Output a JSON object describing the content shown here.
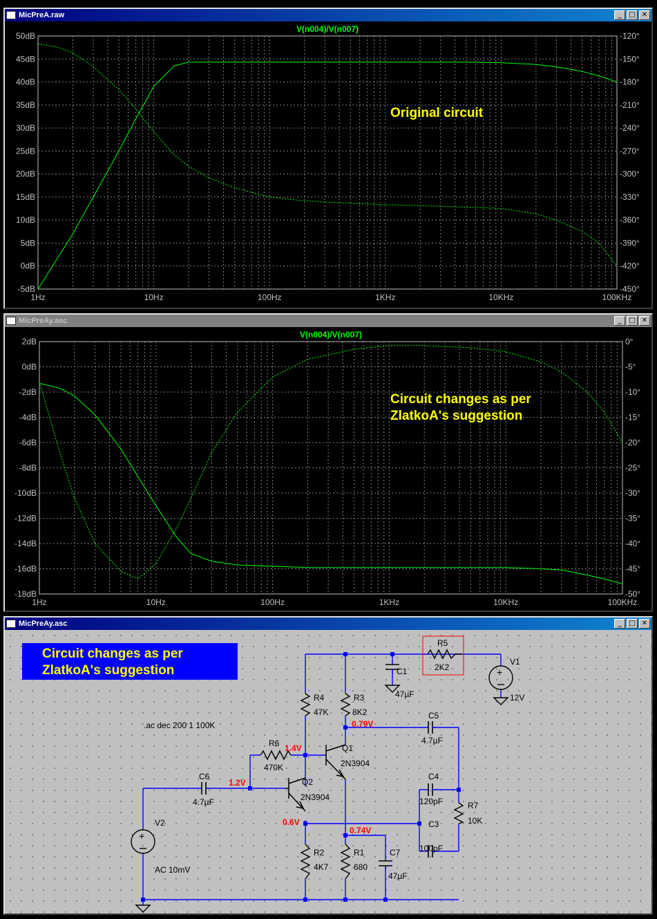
{
  "windows": {
    "top": {
      "title": "MicPreA.raw",
      "trace_label": "V(n004)/V(n007)",
      "annotation": "Original circuit",
      "left_ticks": [
        "50dB",
        "45dB",
        "40dB",
        "35dB",
        "30dB",
        "25dB",
        "20dB",
        "15dB",
        "10dB",
        "5dB",
        "0dB",
        "-5dB"
      ],
      "right_ticks": [
        "-120°",
        "-150°",
        "-180°",
        "-210°",
        "-240°",
        "-270°",
        "-300°",
        "-330°",
        "-360°",
        "-390°",
        "-420°",
        "-450°"
      ],
      "x_ticks": [
        "1Hz",
        "10Hz",
        "100Hz",
        "1KHz",
        "10KHz",
        "100KHz"
      ]
    },
    "middle": {
      "title": "MicPreAy.asc",
      "trace_label": "V(n004)/V(n007)",
      "annotation_line1": "Circuit changes as per",
      "annotation_line2": "ZlatkoA's suggestion",
      "left_ticks": [
        "2dB",
        "0dB",
        "-2dB",
        "-4dB",
        "-6dB",
        "-8dB",
        "-10dB",
        "-12dB",
        "-14dB",
        "-16dB",
        "-18dB"
      ],
      "right_ticks": [
        "0°",
        "-5°",
        "-10°",
        "-15°",
        "-20°",
        "-25°",
        "-30°",
        "-35°",
        "-40°",
        "-45°",
        "-50°"
      ],
      "x_ticks": [
        "1Hz",
        "10Hz",
        "100Hz",
        "1KHz",
        "10KHz",
        "100KHz"
      ]
    },
    "bottom": {
      "title": "MicPreAy.asc",
      "banner_line1": "Circuit changes as per",
      "banner_line2": "ZlatkoA's suggestion",
      "directive": ".ac dec 200 1 100K",
      "components": {
        "R5": {
          "name": "R5",
          "value": "2K2"
        },
        "V1": {
          "name": "V1",
          "value": "12V"
        },
        "C1": {
          "name": "C1",
          "value": "47µF"
        },
        "R4": {
          "name": "R4",
          "value": "47K"
        },
        "R3": {
          "name": "R3",
          "value": "8K2"
        },
        "C5": {
          "name": "C5",
          "value": "4.7µF"
        },
        "R6": {
          "name": "R6",
          "value": "470K"
        },
        "Q1": {
          "name": "Q1",
          "value": "2N3904"
        },
        "Q2": {
          "name": "Q2",
          "value": "2N3904"
        },
        "C6": {
          "name": "C6",
          "value": "4.7µF"
        },
        "C4": {
          "name": "C4",
          "value": "120pF"
        },
        "R7": {
          "name": "R7",
          "value": "10K"
        },
        "C3": {
          "name": "C3",
          "value": "100pF"
        },
        "V2": {
          "name": "V2",
          "value": "AC 10mV"
        },
        "R2": {
          "name": "R2",
          "value": "4K7"
        },
        "R1": {
          "name": "R1",
          "value": "680"
        },
        "C7": {
          "name": "C7",
          "value": "47µF"
        }
      },
      "voltages": {
        "n1": "0.79V",
        "n2": "1.4V",
        "n3": "1.2V",
        "n4": "0.6V",
        "n5": "0.74V"
      }
    }
  },
  "colors": {
    "trace": "#00ff00",
    "grid": "#808080",
    "annot": "#ffff00",
    "wire": "#0000ff",
    "volt": "#ff0000",
    "banner": "#0000ff"
  },
  "chart_data": [
    {
      "type": "line",
      "title": "V(n004)/V(n007)",
      "x_scale": "log",
      "xlim": [
        1,
        100000
      ],
      "ylim": [
        -5,
        50
      ],
      "y2lim": [
        -450,
        -120
      ],
      "series": [
        {
          "axis": "left",
          "style": "solid",
          "unit": "dB",
          "x": [
            1,
            1.5,
            2,
            3,
            5,
            7,
            10,
            15,
            20,
            50,
            100,
            1000,
            5000,
            10000,
            20000,
            30000,
            50000,
            70000,
            100000
          ],
          "values": [
            -5,
            2,
            7,
            15,
            25,
            32,
            39,
            43.5,
            44.3,
            44.3,
            44.3,
            44.3,
            44.3,
            44.2,
            43.8,
            43.3,
            42.3,
            41.3,
            40
          ]
        },
        {
          "axis": "right",
          "style": "dashed",
          "unit": "°",
          "x": [
            1,
            1.5,
            2,
            3,
            5,
            7,
            10,
            15,
            20,
            30,
            50,
            100,
            200,
            500,
            1000,
            3000,
            10000,
            20000,
            30000,
            50000,
            70000,
            100000
          ],
          "values": [
            -130,
            -135,
            -142,
            -160,
            -190,
            -215,
            -245,
            -275,
            -290,
            -305,
            -318,
            -330,
            -335,
            -338,
            -340,
            -342,
            -345,
            -352,
            -360,
            -375,
            -390,
            -420
          ]
        }
      ]
    },
    {
      "type": "line",
      "title": "V(n004)/V(n007)",
      "x_scale": "log",
      "xlim": [
        1,
        100000
      ],
      "ylim": [
        -18,
        2
      ],
      "y2lim": [
        -50,
        0
      ],
      "series": [
        {
          "axis": "left",
          "style": "solid",
          "unit": "dB",
          "x": [
            1,
            1.5,
            2,
            3,
            5,
            7,
            10,
            15,
            20,
            30,
            50,
            100,
            200,
            500,
            1000,
            5000,
            10000,
            20000,
            30000,
            50000,
            70000,
            100000
          ],
          "values": [
            -1.3,
            -1.7,
            -2.3,
            -3.8,
            -6.5,
            -8.7,
            -11,
            -13.5,
            -14.8,
            -15.4,
            -15.7,
            -15.8,
            -15.9,
            -15.9,
            -15.9,
            -15.9,
            -15.9,
            -16,
            -16.1,
            -16.5,
            -16.8,
            -17.2
          ]
        },
        {
          "axis": "right",
          "style": "dashed",
          "unit": "°",
          "x": [
            1,
            1.5,
            2,
            3,
            5,
            7,
            10,
            15,
            20,
            30,
            50,
            100,
            200,
            500,
            1000,
            2000,
            5000,
            10000,
            20000,
            30000,
            50000,
            70000,
            100000
          ],
          "values": [
            -8,
            -22,
            -31,
            -40,
            -45.5,
            -47,
            -44,
            -37,
            -31,
            -22,
            -14,
            -7,
            -3.5,
            -1.5,
            -0.8,
            -0.8,
            -1.2,
            -2,
            -4,
            -6,
            -10,
            -14,
            -20
          ]
        }
      ]
    }
  ]
}
